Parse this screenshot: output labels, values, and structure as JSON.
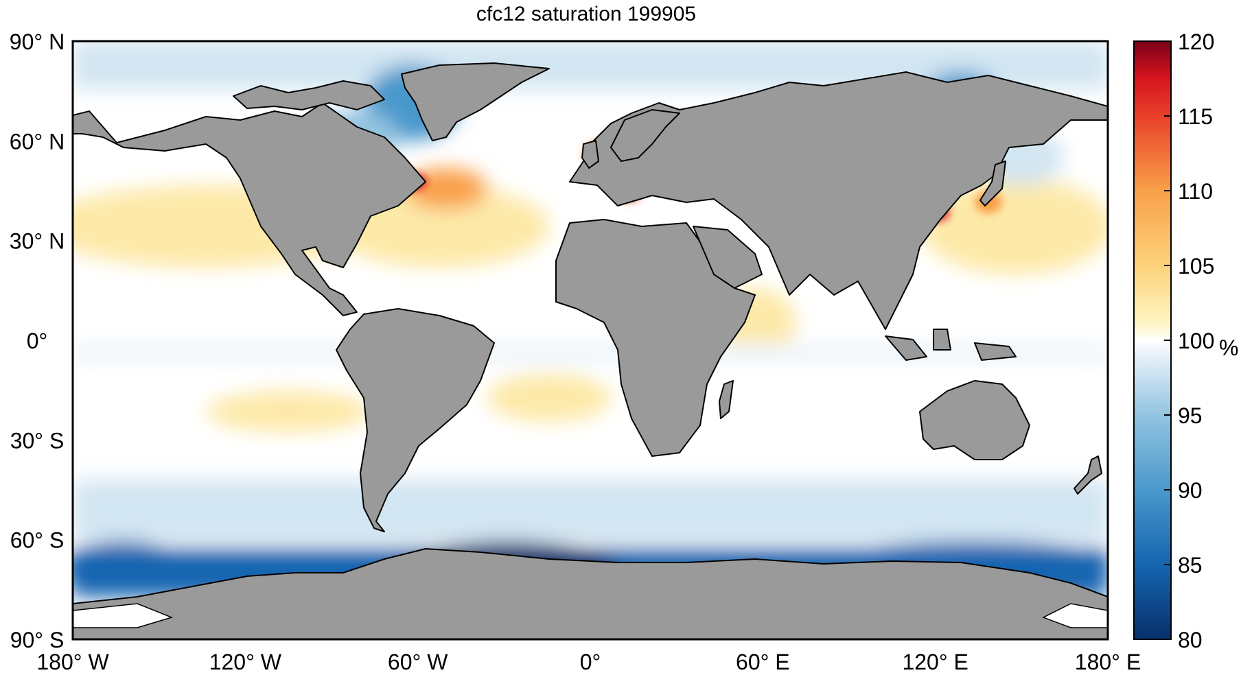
{
  "title": "cfc12 saturation 199905",
  "axes": {
    "lon_ticks": [
      {
        "value": -180,
        "label": "180",
        "suffix": "W"
      },
      {
        "value": -120,
        "label": "120",
        "suffix": "W"
      },
      {
        "value": -60,
        "label": "60",
        "suffix": "W"
      },
      {
        "value": 0,
        "label": "0",
        "suffix": ""
      },
      {
        "value": 60,
        "label": "60",
        "suffix": "E"
      },
      {
        "value": 120,
        "label": "120",
        "suffix": "E"
      },
      {
        "value": 180,
        "label": "180",
        "suffix": "E"
      }
    ],
    "lat_ticks": [
      {
        "value": 90,
        "label": "90",
        "suffix": "N"
      },
      {
        "value": 60,
        "label": "60",
        "suffix": "N"
      },
      {
        "value": 30,
        "label": "30",
        "suffix": "N"
      },
      {
        "value": 0,
        "label": "0",
        "suffix": ""
      },
      {
        "value": -30,
        "label": "30",
        "suffix": "S"
      },
      {
        "value": -60,
        "label": "60",
        "suffix": "S"
      },
      {
        "value": -90,
        "label": "90",
        "suffix": "S"
      }
    ],
    "lon_range": [
      -180,
      180
    ],
    "lat_range": [
      -90,
      90
    ],
    "degree_symbol": "°"
  },
  "colorbar": {
    "range": [
      80,
      120
    ],
    "ticks": [
      "80",
      "85",
      "90",
      "95",
      "100",
      "105",
      "110",
      "115",
      "120"
    ],
    "unit": "%"
  },
  "colors": {
    "land": "#9a9a9a",
    "ocean_neutral": "#ffffff",
    "colormap": [
      "#08306b",
      "#1565b0",
      "#4a98cc",
      "#93c4e0",
      "#d2e5f2",
      "#ffffff",
      "#fef0b0",
      "#fcd27a",
      "#f9a04a",
      "#f0602c",
      "#d4141e",
      "#7a0018"
    ]
  }
}
